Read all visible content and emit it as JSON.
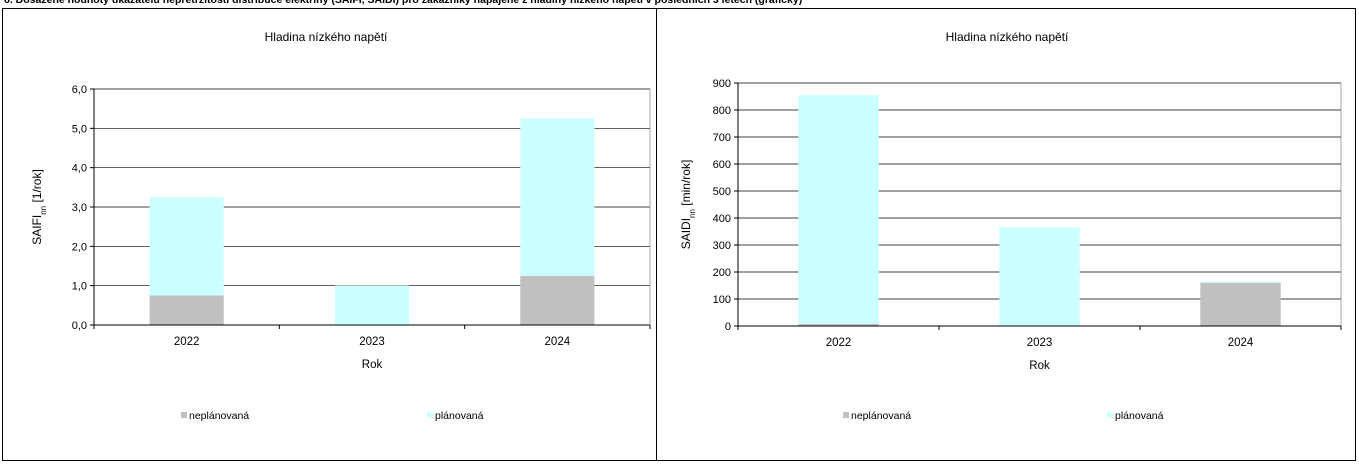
{
  "page": {
    "heading": "6. Dosažené hodnoty ukazatelů nepřetržitosti distribuce elektřiny (SAIFI, SAIDI) pro zákazníky napájené z hladiny nízkého napětí v posledních 3 letech (grafický)"
  },
  "colors": {
    "neplanovana": "#c0c0c0",
    "planovana": "#ccffff",
    "grid": "#000000"
  },
  "chart_data": [
    {
      "type": "bar",
      "stacked": true,
      "title": "Hladina nízkého napětí",
      "ylabel": "SAIFI",
      "ylabel_sub": "nn",
      "ylabel_unit": " [1/rok]",
      "xlabel": "Rok",
      "categories": [
        "2022",
        "2023",
        "2024"
      ],
      "ylim": [
        0,
        6
      ],
      "yticks": [
        "0,0",
        "1,0",
        "2,0",
        "3,0",
        "4,0",
        "5,0",
        "6,0"
      ],
      "grid": true,
      "legend_position": "bottom",
      "series": [
        {
          "name": "neplánovaná",
          "values": [
            0.75,
            0.0,
            1.25
          ]
        },
        {
          "name": "plánovaná",
          "values": [
            2.5,
            1.0,
            4.0
          ]
        }
      ]
    },
    {
      "type": "bar",
      "stacked": true,
      "title": "Hladina nízkého napětí",
      "ylabel": "SAIDI",
      "ylabel_sub": "nn",
      "ylabel_unit": " [min/rok]",
      "xlabel": "Rok",
      "categories": [
        "2022",
        "2023",
        "2024"
      ],
      "ylim": [
        0,
        900
      ],
      "yticks": [
        "0",
        "100",
        "200",
        "300",
        "400",
        "500",
        "600",
        "700",
        "800",
        "900"
      ],
      "grid": true,
      "legend_position": "bottom",
      "series": [
        {
          "name": "neplánovaná",
          "values": [
            8,
            0,
            160
          ]
        },
        {
          "name": "plánovaná",
          "values": [
            847,
            365,
            5
          ]
        }
      ]
    }
  ]
}
